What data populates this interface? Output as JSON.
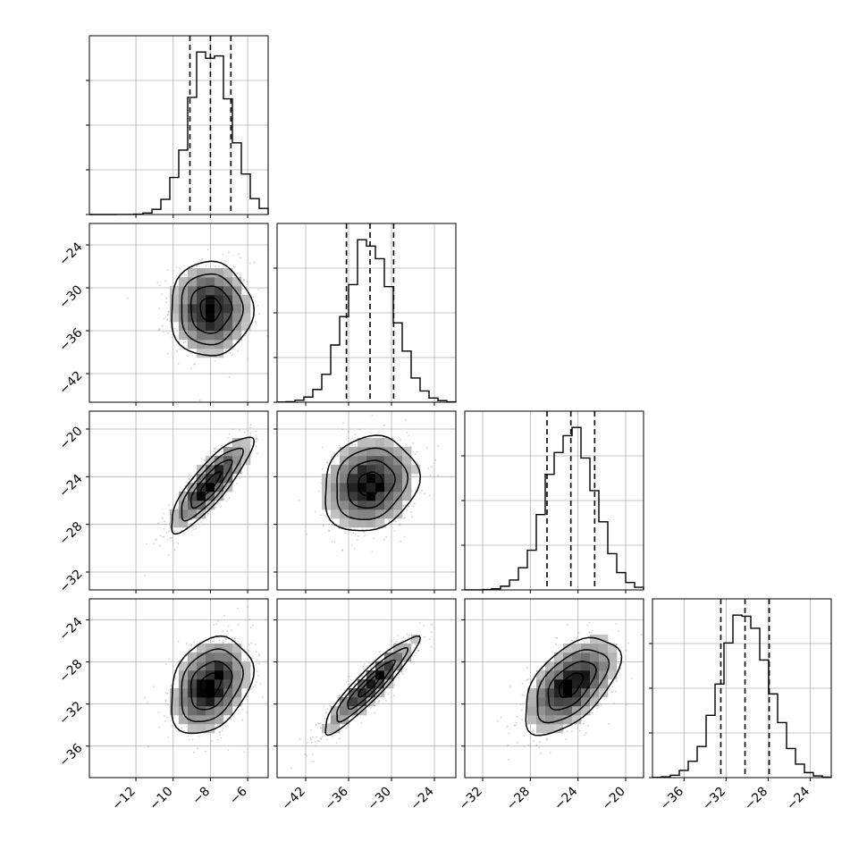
{
  "chart_data": {
    "type": "corner",
    "grid": true,
    "parameters": [
      {
        "name": "",
        "range": [
          -14.5,
          -4.9
        ],
        "ticks": [
          -12,
          -10,
          -8,
          -6
        ],
        "mean": -8.0,
        "std": 1.1,
        "q": [
          -9.1,
          -8.0,
          -6.9
        ]
      },
      {
        "name": "",
        "range": [
          -46.0,
          -21.0
        ],
        "ticks": [
          -42,
          -36,
          -30,
          -24
        ],
        "mean": -33.0,
        "std": 3.3,
        "q": [
          -36.3,
          -33.0,
          -29.7
        ]
      },
      {
        "name": "",
        "range": [
          -33.5,
          -18.5
        ],
        "ticks": [
          -32,
          -28,
          -24,
          -20
        ],
        "mean": -24.6,
        "std": 2.0,
        "q": [
          -26.6,
          -24.6,
          -22.6
        ]
      },
      {
        "name": "",
        "range": [
          -39.0,
          -22.0
        ],
        "ticks": [
          -36,
          -32,
          -28,
          -24
        ],
        "mean": -30.2,
        "std": 2.3,
        "q": [
          -32.5,
          -30.2,
          -27.9
        ]
      }
    ],
    "correlations": [
      {
        "i": 1,
        "j": 0,
        "rho": 0.0
      },
      {
        "i": 2,
        "j": 0,
        "rho": 0.85
      },
      {
        "i": 2,
        "j": 1,
        "rho": 0.15
      },
      {
        "i": 3,
        "j": 0,
        "rho": 0.3
      },
      {
        "i": 3,
        "j": 1,
        "rho": 0.92
      },
      {
        "i": 3,
        "j": 2,
        "rho": 0.55
      }
    ],
    "contour_levels_sigma": [
      0.5,
      1.0,
      1.5,
      2.0
    ],
    "quantiles": [
      0.16,
      0.5,
      0.84
    ]
  }
}
